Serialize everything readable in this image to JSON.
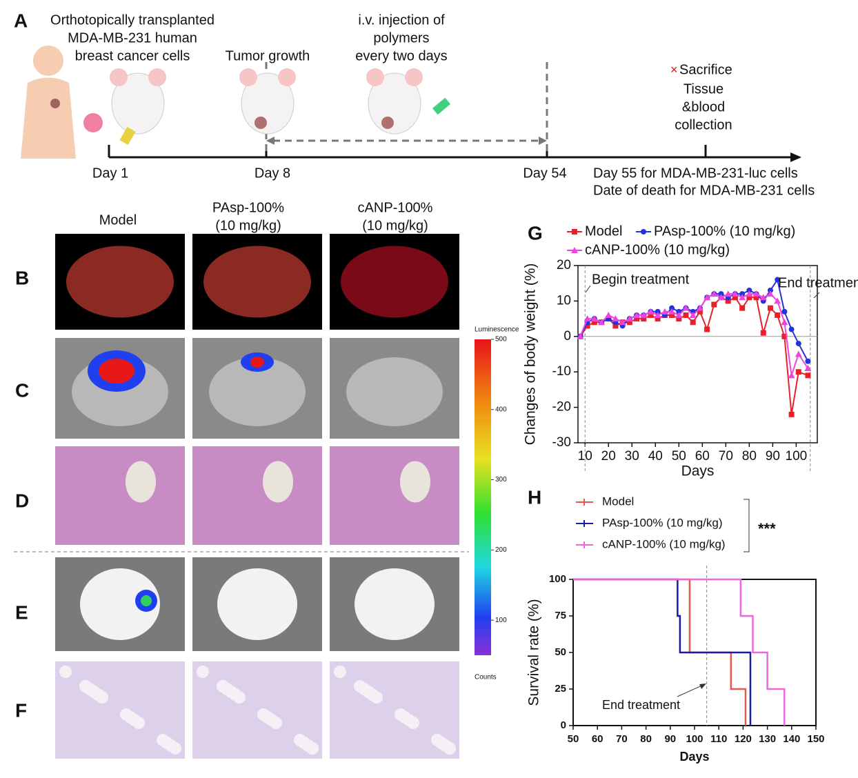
{
  "panel_a": {
    "label": "A",
    "texts": [
      "Orthotopically transplanted",
      "MDA-MB-231 human",
      "breast cancer cells",
      "Tumor growth",
      "i.v. injection of",
      "polymers",
      "every two days",
      "Sacrifice",
      "Tissue",
      "&blood",
      "collection"
    ],
    "days": [
      "Day 1",
      "Day 8",
      "Day 54",
      "Day 55 for MDA-MB-231-luc cells",
      "Date of death for MDA-MB-231 cells"
    ]
  },
  "panels": {
    "labels": [
      "B",
      "C",
      "D",
      "E",
      "F"
    ],
    "columns": [
      {
        "name": "Model"
      },
      {
        "name": "PAsp-100%",
        "dose": "(10 mg/kg)"
      },
      {
        "name": "cANP-100%",
        "dose": "(10 mg/kg)"
      }
    ]
  },
  "colorbar": {
    "title": "Luminescence",
    "unit": "Counts",
    "lim": [
      50,
      500
    ],
    "ticks": [
      500,
      400,
      300,
      200,
      100
    ]
  },
  "chart_data": [
    {
      "type": "line",
      "label": "G",
      "x_label": "Days",
      "y_label": "Changes of body weight (%)",
      "annotations": [
        "Begin treatment",
        "End treatment"
      ],
      "reference_lines": [
        10,
        106
      ],
      "x": [
        8,
        11,
        14,
        17,
        20,
        23,
        26,
        29,
        32,
        35,
        38,
        41,
        44,
        47,
        50,
        53,
        56,
        59,
        62,
        65,
        68,
        71,
        74,
        77,
        80,
        83,
        86,
        89,
        92,
        95,
        98,
        101,
        105
      ],
      "series": [
        {
          "name": "Model",
          "color": "#e8202a",
          "marker": "square",
          "values": [
            0,
            3,
            4,
            4,
            5,
            3,
            4,
            4,
            5,
            5,
            6,
            5,
            6,
            6,
            5,
            6,
            4,
            7,
            2,
            9,
            11,
            10,
            11,
            8,
            11,
            11,
            1,
            8,
            6,
            0,
            -22,
            -10,
            -11
          ]
        },
        {
          "name": "PAsp-100% (10 mg/kg)",
          "color": "#2233dd",
          "marker": "circle",
          "values": [
            0,
            4,
            5,
            4,
            5,
            4,
            3,
            5,
            6,
            6,
            7,
            7,
            6,
            8,
            7,
            8,
            7,
            8,
            11,
            12,
            12,
            11,
            12,
            12,
            13,
            12,
            10,
            13,
            16,
            7,
            2,
            -2,
            -7
          ]
        },
        {
          "name": "cANP-100% (10 mg/kg)",
          "color": "#ee44dd",
          "marker": "triangle",
          "values": [
            0,
            5,
            5,
            4,
            6,
            5,
            4,
            5,
            6,
            6,
            7,
            6,
            7,
            7,
            6,
            8,
            6,
            8,
            11,
            12,
            11,
            12,
            12,
            11,
            12,
            12,
            11,
            12,
            10,
            4,
            -11,
            -5,
            -9
          ]
        }
      ],
      "xlim": [
        7,
        109
      ],
      "ylim": [
        -30,
        20
      ],
      "xticks": [
        10,
        20,
        30,
        40,
        50,
        60,
        70,
        80,
        90,
        100
      ],
      "yticks": [
        -30,
        -20,
        -10,
        0,
        10,
        20
      ]
    },
    {
      "type": "step",
      "label": "H",
      "x_label": "Days",
      "y_label": "Survival rate (%)",
      "annotations": [
        "End treatment"
      ],
      "significance": "***",
      "reference_lines": [
        105
      ],
      "series": [
        {
          "name": "Model",
          "color": "#e8584a",
          "x": [
            50,
            98,
            98,
            115,
            115,
            121,
            121
          ],
          "values": [
            100,
            100,
            50,
            50,
            25,
            25,
            0
          ]
        },
        {
          "name": "PAsp-100% (10 mg/kg)",
          "color": "#1a1aa8",
          "x": [
            50,
            93,
            93,
            94,
            94,
            123,
            123
          ],
          "values": [
            100,
            100,
            75,
            75,
            50,
            50,
            0
          ]
        },
        {
          "name": "cANP-100% (10 mg/kg)",
          "color": "#ee66dd",
          "x": [
            50,
            119,
            119,
            124,
            124,
            130,
            130,
            137,
            137
          ],
          "values": [
            100,
            100,
            75,
            75,
            50,
            50,
            25,
            25,
            0
          ]
        }
      ],
      "xlim": [
        50,
        150
      ],
      "ylim": [
        0,
        100
      ],
      "xticks": [
        50,
        60,
        70,
        80,
        90,
        100,
        110,
        120,
        130,
        140,
        150
      ],
      "yticks": [
        0,
        25,
        50,
        75,
        100
      ]
    }
  ]
}
